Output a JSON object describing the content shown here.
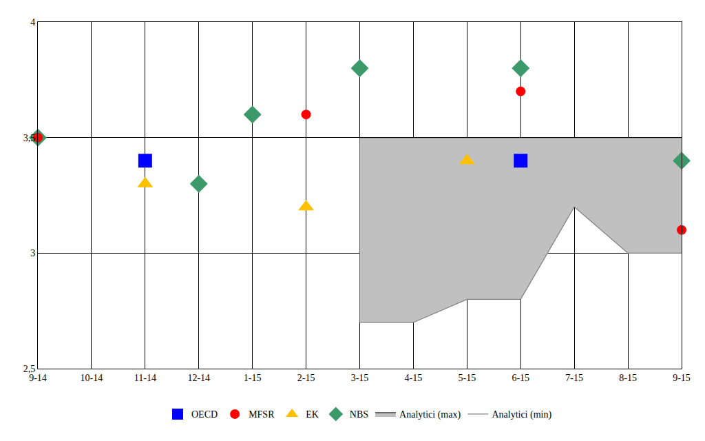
{
  "chart_data": {
    "type": "scatter",
    "categories": [
      "9-14",
      "10-14",
      "11-14",
      "12-14",
      "1-15",
      "2-15",
      "3-15",
      "4-15",
      "5-15",
      "6-15",
      "7-15",
      "8-15",
      "9-15"
    ],
    "series": [
      {
        "name": "Analytici (min)",
        "type": "area",
        "color": "#808080",
        "line_style": "solid",
        "values": [
          null,
          null,
          null,
          null,
          null,
          null,
          2.7,
          2.7,
          2.8,
          2.8,
          3.2,
          3.0,
          3.0
        ]
      },
      {
        "name": "Analytici (max)",
        "type": "area",
        "color": "#c0c0c0",
        "line_style": "solid",
        "values": [
          null,
          null,
          null,
          null,
          null,
          null,
          3.5,
          3.5,
          3.5,
          3.5,
          3.5,
          3.5,
          3.5
        ]
      },
      {
        "name": "NBS",
        "type": "scatter",
        "color": "#3c9a6a",
        "marker": "diamond",
        "values": [
          3.5,
          null,
          null,
          3.3,
          3.6,
          null,
          3.8,
          null,
          null,
          3.8,
          null,
          null,
          3.4
        ]
      },
      {
        "name": "EK",
        "type": "scatter",
        "color": "#ffc000",
        "marker": "triangle-up",
        "values": [
          null,
          null,
          3.3,
          null,
          null,
          3.2,
          null,
          null,
          3.4,
          null,
          null,
          null,
          null
        ]
      },
      {
        "name": "MFSR",
        "type": "scatter",
        "color": "#ff0000",
        "marker": "circle",
        "values": [
          3.5,
          null,
          null,
          null,
          null,
          3.6,
          null,
          null,
          null,
          3.7,
          null,
          null,
          3.1
        ]
      },
      {
        "name": "OECD",
        "type": "scatter",
        "color": "#0000ff",
        "marker": "square",
        "values": [
          null,
          null,
          3.4,
          null,
          null,
          null,
          null,
          null,
          null,
          3.4,
          null,
          null,
          null
        ]
      }
    ],
    "ylim": [
      2.5,
      4
    ],
    "yticks": [
      {
        "value": 2.5,
        "label": "2,5"
      },
      3,
      {
        "value": 3.5,
        "label": "3,5"
      },
      4
    ],
    "grid": true,
    "legend": "bottom"
  }
}
